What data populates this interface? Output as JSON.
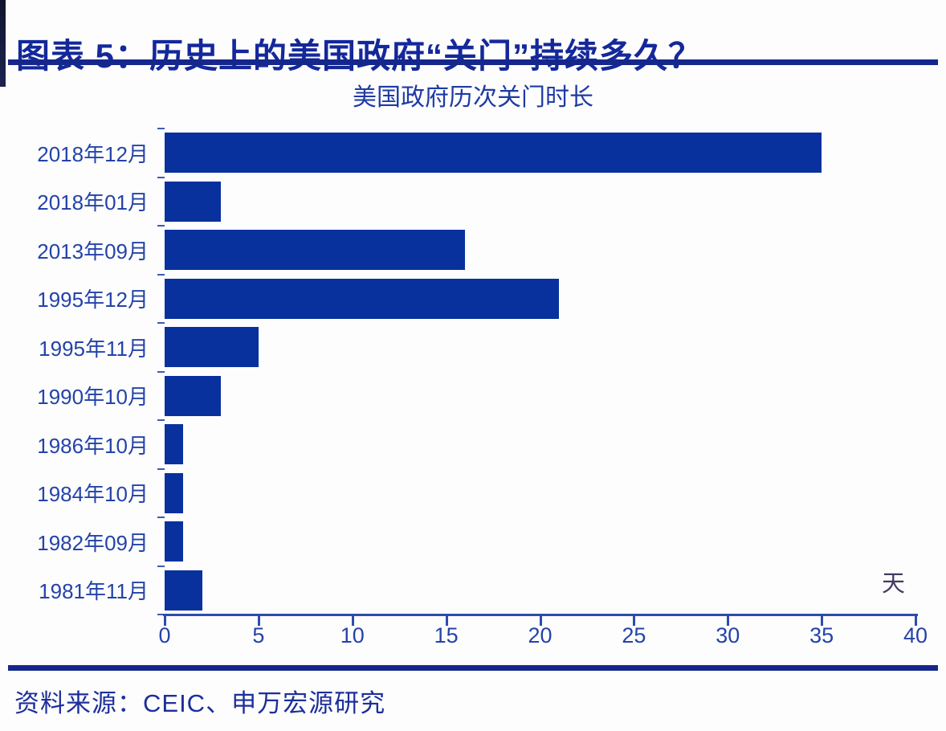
{
  "page": {
    "title": "图表 5：历史上的美国政府“关门”持续多久？",
    "source": "资料来源：CEIC、申万宏源研究"
  },
  "chart_data": {
    "type": "bar",
    "orientation": "horizontal",
    "title": "美国政府历次关门时长",
    "categories": [
      "2018年12月",
      "2018年01月",
      "2013年09月",
      "1995年12月",
      "1995年11月",
      "1990年10月",
      "1986年10月",
      "1984年10月",
      "1982年09月",
      "1981年11月"
    ],
    "values": [
      35,
      3,
      16,
      21,
      5,
      3,
      1,
      1,
      1,
      2
    ],
    "unit_label": "天",
    "xlabel": "",
    "ylabel": "",
    "xlim": [
      0,
      40
    ],
    "x_ticks": [
      0,
      5,
      10,
      15,
      20,
      25,
      30,
      35,
      40
    ],
    "grid": false,
    "legend": "none",
    "bar_color": "#08319e",
    "axis_color": "#2d4cae",
    "tick_label_color": "#2443a8"
  },
  "colors": {
    "title": "#14289a",
    "rule": "#16278c",
    "chart_title": "#1e3ba4",
    "unit_label": "#453a5f",
    "source": "#1c2f9a"
  }
}
